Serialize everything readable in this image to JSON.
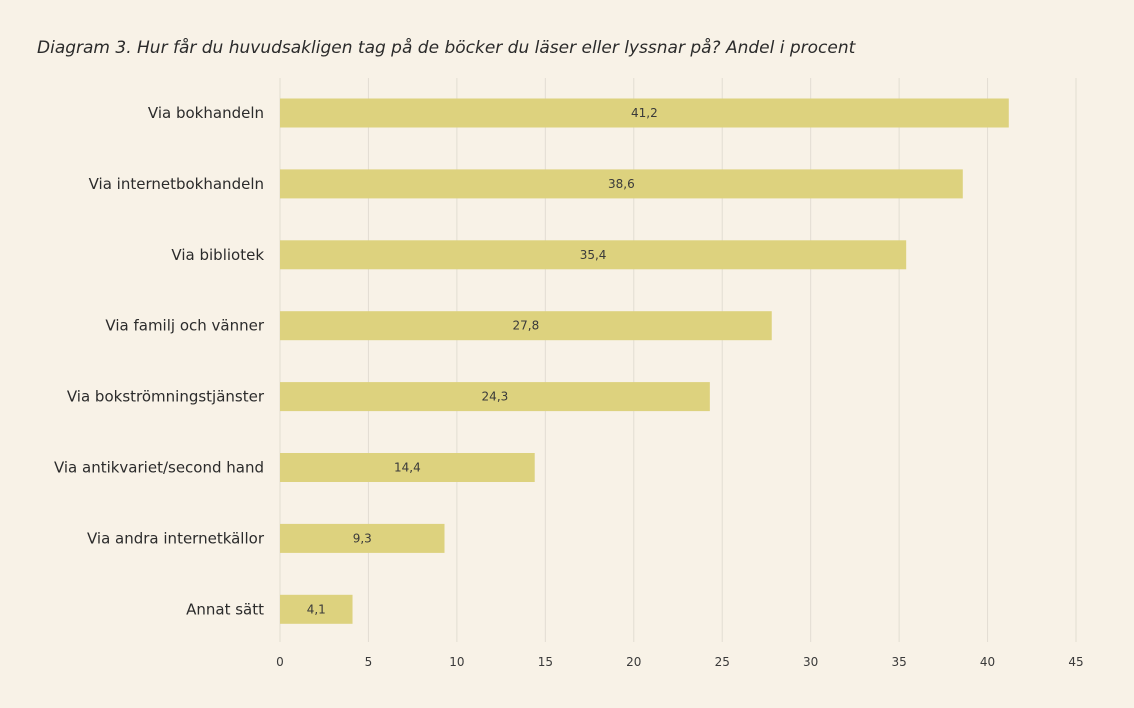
{
  "colors": {
    "background": "#f8f2e7",
    "bar": "#ddd27e",
    "grid": "#e2ddd2",
    "text": "#2b2b2b"
  },
  "chart_data": {
    "type": "bar",
    "orientation": "horizontal",
    "title": "Diagram 3. Hur får du huvudsakligen tag på de böcker du läser eller lyssnar på? Andel i procent",
    "xlabel": "",
    "ylabel": "",
    "categories": [
      "Via bokhandeln",
      "Via internetbokhandeln",
      "Via bibliotek",
      "Via familj och vänner",
      "Via bokströmningstjänster",
      "Via antikvariet/second hand",
      "Via andra internetkällor",
      "Annat sätt"
    ],
    "values": [
      41.2,
      38.6,
      35.4,
      27.8,
      24.3,
      14.4,
      9.3,
      4.1
    ],
    "value_labels": [
      "41,2",
      "38,6",
      "35,4",
      "27,8",
      "24,3",
      "14,4",
      "9,3",
      "4,1"
    ],
    "xlim": [
      0,
      45
    ],
    "ticks": [
      0,
      5,
      10,
      15,
      20,
      25,
      30,
      35,
      40,
      45
    ],
    "grid": true,
    "legend": "none"
  }
}
